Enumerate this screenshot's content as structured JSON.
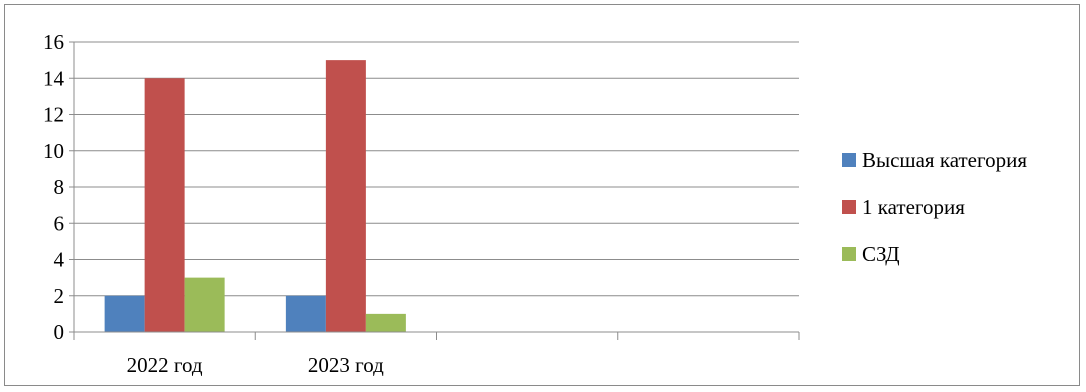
{
  "chart_data": {
    "type": "bar",
    "title": "",
    "xlabel": "",
    "ylabel": "",
    "categories": [
      "2022 год",
      "2023 год",
      "",
      ""
    ],
    "series": [
      {
        "name": "Высшая категория",
        "color": "#4f81bd",
        "values": [
          2,
          2,
          null,
          null
        ]
      },
      {
        "name": "1 категория",
        "color": "#c0504d",
        "values": [
          14,
          15,
          null,
          null
        ]
      },
      {
        "name": "СЗД",
        "color": "#9bbb59",
        "values": [
          3,
          1,
          null,
          null
        ]
      }
    ],
    "ylim": [
      0,
      16
    ],
    "yticks": [
      0,
      2,
      4,
      6,
      8,
      10,
      12,
      14,
      16
    ],
    "grid": true,
    "legend_position": "right"
  }
}
